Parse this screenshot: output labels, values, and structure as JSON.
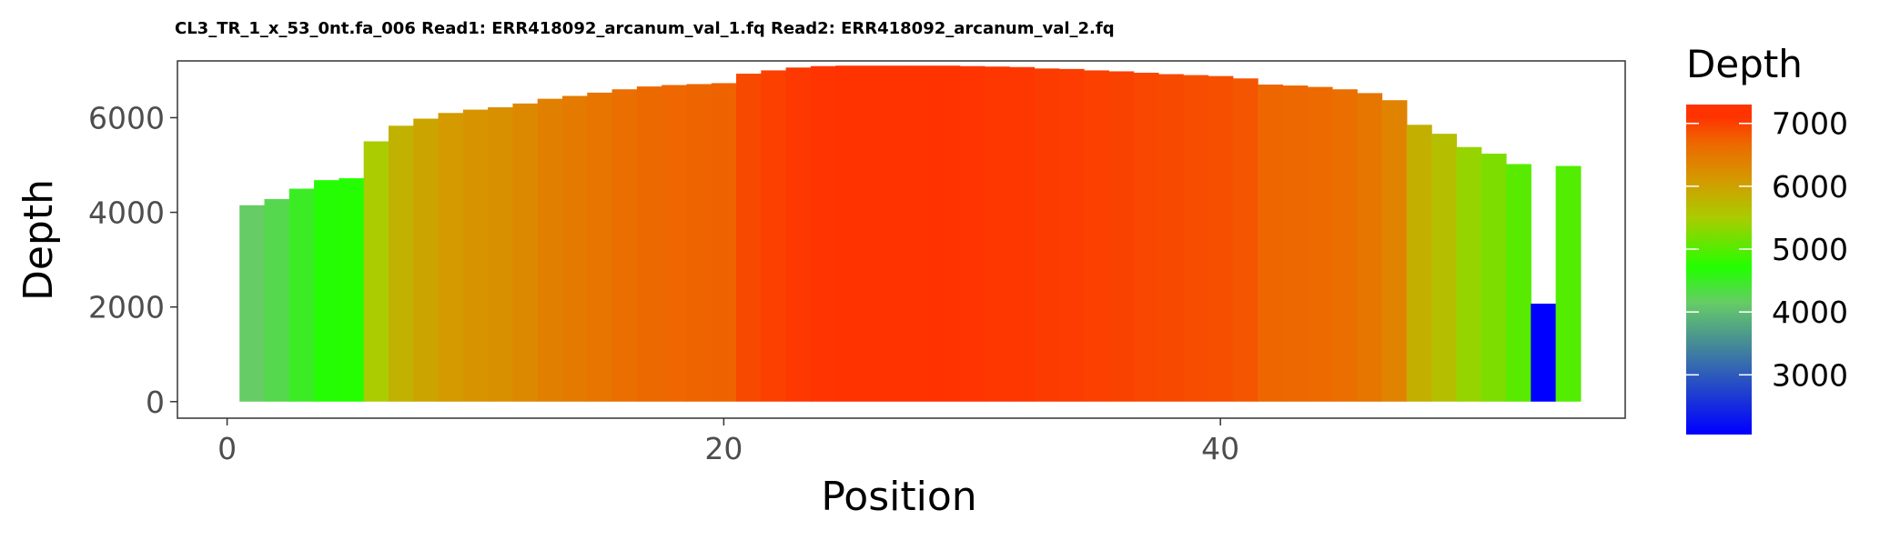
{
  "chart_data": {
    "type": "bar",
    "title": "CL3_TR_1_x_53_0nt.fa_006 Read1: ERR418092_arcanum_val_1.fq Read2: ERR418092_arcanum_val_2.fq",
    "xlabel": "Position",
    "ylabel": "Depth",
    "xlim": [
      -2,
      56.3
    ],
    "ylim": [
      -350,
      7200
    ],
    "x_ticks": [
      0,
      20,
      40
    ],
    "y_ticks": [
      0,
      2000,
      4000,
      6000
    ],
    "grid": false,
    "legend": {
      "title": "Depth",
      "placement": "right",
      "range": [
        2050,
        7300
      ],
      "ticks": [
        3000,
        4000,
        5000,
        6000,
        7000
      ],
      "gradient_stops": [
        {
          "value": 2070,
          "color": "#0000ff"
        },
        {
          "value": 4150,
          "color": "#66cc66"
        },
        {
          "value": 4700,
          "color": "#22ff00"
        },
        {
          "value": 5500,
          "color": "#aacc00"
        },
        {
          "value": 6100,
          "color": "#d49a00"
        },
        {
          "value": 6700,
          "color": "#ee6600"
        },
        {
          "value": 7100,
          "color": "#ff3300"
        }
      ]
    },
    "x": [
      1,
      2,
      3,
      4,
      5,
      6,
      7,
      8,
      9,
      10,
      11,
      12,
      13,
      14,
      15,
      16,
      17,
      18,
      19,
      20,
      21,
      22,
      23,
      24,
      25,
      26,
      27,
      28,
      29,
      30,
      31,
      32,
      33,
      34,
      35,
      36,
      37,
      38,
      39,
      40,
      41,
      42,
      43,
      44,
      45,
      46,
      47,
      48,
      49,
      50,
      51,
      52,
      53,
      54
    ],
    "values": [
      4150,
      4280,
      4500,
      4680,
      4720,
      5500,
      5830,
      5980,
      6100,
      6170,
      6220,
      6300,
      6400,
      6460,
      6530,
      6600,
      6660,
      6690,
      6710,
      6730,
      6930,
      7000,
      7060,
      7090,
      7100,
      7100,
      7100,
      7100,
      7100,
      7090,
      7080,
      7070,
      7040,
      7030,
      7000,
      6980,
      6950,
      6920,
      6900,
      6880,
      6830,
      6700,
      6680,
      6650,
      6600,
      6520,
      6370,
      5850,
      5660,
      5380,
      5240,
      5020,
      2070,
      4980
    ]
  }
}
